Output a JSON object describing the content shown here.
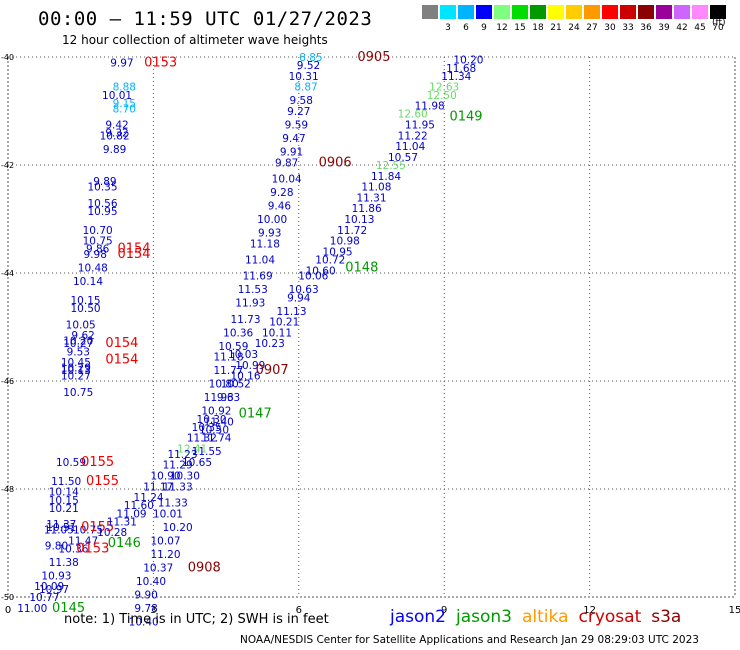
{
  "header": {
    "title": "00:00 – 11:59 UTC 01/27/2023",
    "subtitle": "12 hour collection of altimeter wave heights"
  },
  "color_scale": {
    "unit": "(ft)",
    "bins": [
      {
        "label": "",
        "color": "#808080"
      },
      {
        "label": "3",
        "color": "#00e5ff"
      },
      {
        "label": "6",
        "color": "#00b4ff"
      },
      {
        "label": "9",
        "color": "#0000ff"
      },
      {
        "label": "12",
        "color": "#7fff7f"
      },
      {
        "label": "15",
        "color": "#00dd00"
      },
      {
        "label": "18",
        "color": "#009900"
      },
      {
        "label": "21",
        "color": "#ffff00"
      },
      {
        "label": "24",
        "color": "#ffcc00"
      },
      {
        "label": "27",
        "color": "#ff9900"
      },
      {
        "label": "30",
        "color": "#ff0000"
      },
      {
        "label": "33",
        "color": "#cc0000"
      },
      {
        "label": "36",
        "color": "#8b0000"
      },
      {
        "label": "39",
        "color": "#990099"
      },
      {
        "label": "42",
        "color": "#cc66ff"
      },
      {
        "label": "45",
        "color": "#ff88ff"
      },
      {
        "label": "70",
        "color": "#000000"
      }
    ]
  },
  "chart_data": {
    "type": "scatter",
    "title": "00:00 – 11:59 UTC 01/27/2023",
    "subtitle": "12 hour collection of altimeter wave heights",
    "xlim": [
      0,
      15
    ],
    "ylim": [
      -50,
      -40
    ],
    "x_ticks": [
      "0",
      "3",
      "6",
      "9",
      "12",
      "15"
    ],
    "y_ticks": [
      "-40",
      "-42",
      "-44",
      "-46",
      "-48",
      "-50"
    ],
    "grid": true,
    "labels": [
      {
        "x": 2.35,
        "y": -40.1,
        "text": "9.97",
        "color": "#0000cc"
      },
      {
        "x": 3.15,
        "y": -40.1,
        "text": "0153",
        "color": "#ee0000"
      },
      {
        "x": 2.4,
        "y": -40.55,
        "text": "8.88",
        "color": "#00b4ff"
      },
      {
        "x": 2.25,
        "y": -40.7,
        "text": "10.01",
        "color": "#0000cc"
      },
      {
        "x": 2.4,
        "y": -40.85,
        "text": "9.15",
        "color": "#00b4ff"
      },
      {
        "x": 2.4,
        "y": -40.95,
        "text": "8.70",
        "color": "#00b4ff"
      },
      {
        "x": 2.25,
        "y": -41.25,
        "text": "9.42",
        "color": "#0000cc"
      },
      {
        "x": 2.25,
        "y": -41.4,
        "text": "9.32",
        "color": "#0000cc"
      },
      {
        "x": 2.2,
        "y": -41.45,
        "text": "10.82",
        "color": "#0000cc"
      },
      {
        "x": 2.2,
        "y": -41.7,
        "text": "9.89",
        "color": "#0000cc"
      },
      {
        "x": 2.0,
        "y": -42.3,
        "text": "9.89",
        "color": "#0000cc"
      },
      {
        "x": 1.95,
        "y": -42.4,
        "text": "10.35",
        "color": "#0000cc"
      },
      {
        "x": 1.95,
        "y": -42.7,
        "text": "10.56",
        "color": "#0000cc"
      },
      {
        "x": 1.95,
        "y": -42.85,
        "text": "10.95",
        "color": "#0000cc"
      },
      {
        "x": 1.85,
        "y": -43.2,
        "text": "10.70",
        "color": "#0000cc"
      },
      {
        "x": 1.85,
        "y": -43.4,
        "text": "10.75",
        "color": "#0000cc"
      },
      {
        "x": 1.85,
        "y": -43.55,
        "text": "9.86",
        "color": "#0000cc"
      },
      {
        "x": 1.8,
        "y": -43.65,
        "text": "9.98",
        "color": "#0000cc"
      },
      {
        "x": 2.6,
        "y": -43.55,
        "text": "0154",
        "color": "#ee0000"
      },
      {
        "x": 2.6,
        "y": -43.65,
        "text": "0154",
        "color": "#ee0000"
      },
      {
        "x": 1.75,
        "y": -43.9,
        "text": "10.48",
        "color": "#0000cc"
      },
      {
        "x": 1.65,
        "y": -44.15,
        "text": "10.14",
        "color": "#0000cc"
      },
      {
        "x": 1.6,
        "y": -44.5,
        "text": "10.15",
        "color": "#0000cc"
      },
      {
        "x": 1.6,
        "y": -44.65,
        "text": "10.50",
        "color": "#0000cc"
      },
      {
        "x": 1.5,
        "y": -44.95,
        "text": "10.05",
        "color": "#0000cc"
      },
      {
        "x": 1.55,
        "y": -45.15,
        "text": "9.62",
        "color": "#0000cc"
      },
      {
        "x": 1.45,
        "y": -45.25,
        "text": "10.20",
        "color": "#0000cc"
      },
      {
        "x": 1.45,
        "y": -45.3,
        "text": "10.27",
        "color": "#0000cc"
      },
      {
        "x": 2.35,
        "y": -45.3,
        "text": "0154",
        "color": "#ee0000"
      },
      {
        "x": 1.45,
        "y": -45.45,
        "text": "9.53",
        "color": "#0000cc"
      },
      {
        "x": 1.4,
        "y": -45.65,
        "text": "10.45",
        "color": "#0000cc"
      },
      {
        "x": 1.4,
        "y": -45.75,
        "text": "10.29",
        "color": "#0000cc"
      },
      {
        "x": 1.4,
        "y": -45.8,
        "text": "10.13",
        "color": "#0000cc"
      },
      {
        "x": 1.4,
        "y": -45.9,
        "text": "10.27",
        "color": "#0000cc"
      },
      {
        "x": 2.35,
        "y": -45.6,
        "text": "0154",
        "color": "#ee0000"
      },
      {
        "x": 1.45,
        "y": -46.2,
        "text": "10.75",
        "color": "#0000cc"
      },
      {
        "x": 1.3,
        "y": -47.5,
        "text": "10.59",
        "color": "#0000cc"
      },
      {
        "x": 1.85,
        "y": -47.5,
        "text": "0155",
        "color": "#ee0000"
      },
      {
        "x": 1.2,
        "y": -47.85,
        "text": "11.50",
        "color": "#0000cc"
      },
      {
        "x": 1.95,
        "y": -47.85,
        "text": "0155",
        "color": "#ee0000"
      },
      {
        "x": 1.15,
        "y": -48.05,
        "text": "10.14",
        "color": "#0000cc"
      },
      {
        "x": 1.15,
        "y": -48.2,
        "text": "10.15",
        "color": "#0000cc"
      },
      {
        "x": 1.15,
        "y": -48.35,
        "text": "10.21",
        "color": "#0000cc"
      },
      {
        "x": 1.1,
        "y": -48.65,
        "text": "11.37",
        "color": "#0000cc"
      },
      {
        "x": 1.1,
        "y": -48.7,
        "text": "10.51",
        "color": "#0000cc"
      },
      {
        "x": 1.05,
        "y": -48.75,
        "text": "11.05",
        "color": "#0000cc"
      },
      {
        "x": 1.65,
        "y": -48.75,
        "text": "10.75",
        "color": "#0000cc"
      },
      {
        "x": 1.85,
        "y": -48.7,
        "text": "0155",
        "color": "#ee0000"
      },
      {
        "x": 1.55,
        "y": -48.95,
        "text": "11.47",
        "color": "#0000cc"
      },
      {
        "x": 1.0,
        "y": -49.05,
        "text": "9.80",
        "color": "#0000cc"
      },
      {
        "x": 1.35,
        "y": -49.1,
        "text": "10.36",
        "color": "#0000cc"
      },
      {
        "x": 1.75,
        "y": -49.1,
        "text": "0153",
        "color": "#ee0000"
      },
      {
        "x": 1.15,
        "y": -49.35,
        "text": "11.38",
        "color": "#0000cc"
      },
      {
        "x": 1.0,
        "y": -49.6,
        "text": "10.93",
        "color": "#0000cc"
      },
      {
        "x": 0.85,
        "y": -49.8,
        "text": "10.09",
        "color": "#0000cc"
      },
      {
        "x": 0.95,
        "y": -49.85,
        "text": "10.97",
        "color": "#0000cc"
      },
      {
        "x": 0.75,
        "y": -50.0,
        "text": "10.77",
        "color": "#0000cc"
      },
      {
        "x": 0.5,
        "y": -50.2,
        "text": "11.00",
        "color": "#0000cc"
      },
      {
        "x": 1.25,
        "y": -50.2,
        "text": "0145",
        "color": "#009900"
      },
      {
        "x": 2.4,
        "y": -49.0,
        "text": "0146",
        "color": "#009900"
      },
      {
        "x": 6.25,
        "y": -40.0,
        "text": "8.85",
        "color": "#00b4ff"
      },
      {
        "x": 6.2,
        "y": -40.15,
        "text": "9.52",
        "color": "#0000cc"
      },
      {
        "x": 7.55,
        "y": -40.0,
        "text": "0905",
        "color": "#8b0000"
      },
      {
        "x": 6.1,
        "y": -40.35,
        "text": "10.31",
        "color": "#0000cc"
      },
      {
        "x": 6.15,
        "y": -40.55,
        "text": "8.87",
        "color": "#00b4ff"
      },
      {
        "x": 6.05,
        "y": -40.8,
        "text": "9.58",
        "color": "#0000cc"
      },
      {
        "x": 6.0,
        "y": -41.0,
        "text": "9.27",
        "color": "#0000cc"
      },
      {
        "x": 5.95,
        "y": -41.25,
        "text": "9.59",
        "color": "#0000cc"
      },
      {
        "x": 5.9,
        "y": -41.5,
        "text": "9.47",
        "color": "#0000cc"
      },
      {
        "x": 5.85,
        "y": -41.75,
        "text": "9.91",
        "color": "#0000cc"
      },
      {
        "x": 5.75,
        "y": -41.95,
        "text": "9.87",
        "color": "#0000cc"
      },
      {
        "x": 6.75,
        "y": -41.95,
        "text": "0906",
        "color": "#8b0000"
      },
      {
        "x": 5.75,
        "y": -42.25,
        "text": "10.04",
        "color": "#0000cc"
      },
      {
        "x": 5.65,
        "y": -42.5,
        "text": "9.28",
        "color": "#0000cc"
      },
      {
        "x": 5.6,
        "y": -42.75,
        "text": "9.46",
        "color": "#0000cc"
      },
      {
        "x": 5.45,
        "y": -43.0,
        "text": "10.00",
        "color": "#0000cc"
      },
      {
        "x": 5.4,
        "y": -43.25,
        "text": "9.93",
        "color": "#0000cc"
      },
      {
        "x": 5.3,
        "y": -43.45,
        "text": "11.18",
        "color": "#0000cc"
      },
      {
        "x": 5.2,
        "y": -43.75,
        "text": "11.04",
        "color": "#0000cc"
      },
      {
        "x": 5.15,
        "y": -44.05,
        "text": "11.69",
        "color": "#0000cc"
      },
      {
        "x": 5.05,
        "y": -44.3,
        "text": "11.53",
        "color": "#0000cc"
      },
      {
        "x": 5.0,
        "y": -44.55,
        "text": "11.93",
        "color": "#0000cc"
      },
      {
        "x": 4.9,
        "y": -44.85,
        "text": "11.73",
        "color": "#0000cc"
      },
      {
        "x": 4.75,
        "y": -45.1,
        "text": "10.36",
        "color": "#0000cc"
      },
      {
        "x": 4.65,
        "y": -45.35,
        "text": "10.59",
        "color": "#0000cc"
      },
      {
        "x": 4.55,
        "y": -45.55,
        "text": "11.18",
        "color": "#0000cc"
      },
      {
        "x": 4.85,
        "y": -45.5,
        "text": "10.03",
        "color": "#0000cc"
      },
      {
        "x": 4.55,
        "y": -45.8,
        "text": "11.77",
        "color": "#0000cc"
      },
      {
        "x": 5.0,
        "y": -45.7,
        "text": "10.99",
        "color": "#0000cc"
      },
      {
        "x": 4.9,
        "y": -45.9,
        "text": "10.16",
        "color": "#0000cc"
      },
      {
        "x": 5.45,
        "y": -45.8,
        "text": "0907",
        "color": "#8b0000"
      },
      {
        "x": 4.45,
        "y": -46.05,
        "text": "10.80",
        "color": "#0000cc"
      },
      {
        "x": 4.7,
        "y": -46.05,
        "text": "10.52",
        "color": "#0000cc"
      },
      {
        "x": 4.35,
        "y": -46.3,
        "text": "11.93",
        "color": "#0000cc"
      },
      {
        "x": 4.55,
        "y": -46.3,
        "text": "9.63",
        "color": "#0000cc"
      },
      {
        "x": 4.3,
        "y": -46.55,
        "text": "10.92",
        "color": "#0000cc"
      },
      {
        "x": 4.2,
        "y": -46.7,
        "text": "10.30",
        "color": "#0000cc"
      },
      {
        "x": 4.1,
        "y": -46.85,
        "text": "10.35",
        "color": "#0000cc"
      },
      {
        "x": 4.25,
        "y": -46.9,
        "text": "10.50",
        "color": "#0000cc"
      },
      {
        "x": 4.35,
        "y": -46.75,
        "text": "11.40",
        "color": "#0000cc"
      },
      {
        "x": 5.1,
        "y": -46.6,
        "text": "0147",
        "color": "#009900"
      },
      {
        "x": 4.0,
        "y": -47.05,
        "text": "11.32",
        "color": "#0000cc"
      },
      {
        "x": 4.3,
        "y": -47.05,
        "text": "11.74",
        "color": "#0000cc"
      },
      {
        "x": 3.8,
        "y": -47.25,
        "text": "12.41",
        "color": "#66dd66"
      },
      {
        "x": 4.1,
        "y": -47.3,
        "text": "11.55",
        "color": "#0000cc"
      },
      {
        "x": 3.6,
        "y": -47.35,
        "text": "11.23",
        "color": "#0000cc"
      },
      {
        "x": 3.5,
        "y": -47.55,
        "text": "11.29",
        "color": "#0000cc"
      },
      {
        "x": 3.9,
        "y": -47.5,
        "text": "10.65",
        "color": "#0000cc"
      },
      {
        "x": 3.25,
        "y": -47.75,
        "text": "10.90",
        "color": "#0000cc"
      },
      {
        "x": 3.65,
        "y": -47.75,
        "text": "10.30",
        "color": "#0000cc"
      },
      {
        "x": 3.1,
        "y": -47.95,
        "text": "11.17",
        "color": "#0000cc"
      },
      {
        "x": 3.5,
        "y": -47.95,
        "text": "11.33",
        "color": "#0000cc"
      },
      {
        "x": 2.9,
        "y": -48.15,
        "text": "11.24",
        "color": "#0000cc"
      },
      {
        "x": 3.4,
        "y": -48.25,
        "text": "11.33",
        "color": "#0000cc"
      },
      {
        "x": 2.7,
        "y": -48.3,
        "text": "11.60",
        "color": "#0000cc"
      },
      {
        "x": 2.55,
        "y": -48.45,
        "text": "11.09",
        "color": "#0000cc"
      },
      {
        "x": 3.3,
        "y": -48.45,
        "text": "10.01",
        "color": "#0000cc"
      },
      {
        "x": 2.35,
        "y": -48.6,
        "text": "11.31",
        "color": "#0000cc"
      },
      {
        "x": 3.5,
        "y": -48.7,
        "text": "10.20",
        "color": "#0000cc"
      },
      {
        "x": 2.15,
        "y": -48.8,
        "text": "10.28",
        "color": "#0000cc"
      },
      {
        "x": 3.25,
        "y": -48.95,
        "text": "10.07",
        "color": "#0000cc"
      },
      {
        "x": 3.25,
        "y": -49.2,
        "text": "11.20",
        "color": "#0000cc"
      },
      {
        "x": 3.1,
        "y": -49.45,
        "text": "10.37",
        "color": "#0000cc"
      },
      {
        "x": 2.95,
        "y": -49.7,
        "text": "10.40",
        "color": "#0000cc"
      },
      {
        "x": 2.85,
        "y": -49.95,
        "text": "9.90",
        "color": "#0000cc"
      },
      {
        "x": 2.85,
        "y": -50.2,
        "text": "9.78",
        "color": "#0000cc"
      },
      {
        "x": 2.8,
        "y": -50.45,
        "text": "10.40",
        "color": "#0000cc"
      },
      {
        "x": 4.05,
        "y": -49.45,
        "text": "0908",
        "color": "#8b0000"
      },
      {
        "x": 9.5,
        "y": -40.05,
        "text": "10.20",
        "color": "#0000cc"
      },
      {
        "x": 9.35,
        "y": -40.2,
        "text": "11.68",
        "color": "#0000cc"
      },
      {
        "x": 9.25,
        "y": -40.35,
        "text": "11.34",
        "color": "#0000cc"
      },
      {
        "x": 9.0,
        "y": -40.55,
        "text": "12.63",
        "color": "#66dd66"
      },
      {
        "x": 8.95,
        "y": -40.7,
        "text": "12.50",
        "color": "#66dd66"
      },
      {
        "x": 8.7,
        "y": -40.9,
        "text": "11.98",
        "color": "#0000cc"
      },
      {
        "x": 8.35,
        "y": -41.05,
        "text": "12.60",
        "color": "#66dd66"
      },
      {
        "x": 8.5,
        "y": -41.25,
        "text": "11.95",
        "color": "#0000cc"
      },
      {
        "x": 8.35,
        "y": -41.45,
        "text": "11.22",
        "color": "#0000cc"
      },
      {
        "x": 8.3,
        "y": -41.65,
        "text": "11.04",
        "color": "#0000cc"
      },
      {
        "x": 8.15,
        "y": -41.85,
        "text": "10.57",
        "color": "#0000cc"
      },
      {
        "x": 7.9,
        "y": -42.0,
        "text": "12.55",
        "color": "#66dd66"
      },
      {
        "x": 7.8,
        "y": -42.2,
        "text": "11.84",
        "color": "#0000cc"
      },
      {
        "x": 7.6,
        "y": -42.4,
        "text": "11.08",
        "color": "#0000cc"
      },
      {
        "x": 7.5,
        "y": -42.6,
        "text": "11.31",
        "color": "#0000cc"
      },
      {
        "x": 7.4,
        "y": -42.8,
        "text": "11.86",
        "color": "#0000cc"
      },
      {
        "x": 7.25,
        "y": -43.0,
        "text": "10.13",
        "color": "#0000cc"
      },
      {
        "x": 7.1,
        "y": -43.2,
        "text": "11.72",
        "color": "#0000cc"
      },
      {
        "x": 6.95,
        "y": -43.4,
        "text": "10.98",
        "color": "#0000cc"
      },
      {
        "x": 6.8,
        "y": -43.6,
        "text": "10.95",
        "color": "#0000cc"
      },
      {
        "x": 6.65,
        "y": -43.75,
        "text": "10.72",
        "color": "#0000cc"
      },
      {
        "x": 6.45,
        "y": -43.95,
        "text": "10.60",
        "color": "#0000cc"
      },
      {
        "x": 7.3,
        "y": -43.9,
        "text": "0148",
        "color": "#009900"
      },
      {
        "x": 6.3,
        "y": -44.05,
        "text": "10.06",
        "color": "#0000cc"
      },
      {
        "x": 6.1,
        "y": -44.3,
        "text": "10.63",
        "color": "#0000cc"
      },
      {
        "x": 6.0,
        "y": -44.45,
        "text": "9.94",
        "color": "#0000cc"
      },
      {
        "x": 5.85,
        "y": -44.7,
        "text": "11.13",
        "color": "#0000cc"
      },
      {
        "x": 5.7,
        "y": -44.9,
        "text": "10.21",
        "color": "#0000cc"
      },
      {
        "x": 5.55,
        "y": -45.1,
        "text": "10.11",
        "color": "#0000cc"
      },
      {
        "x": 5.4,
        "y": -45.3,
        "text": "10.23",
        "color": "#0000cc"
      },
      {
        "x": 9.45,
        "y": -41.1,
        "text": "0149",
        "color": "#009900"
      }
    ]
  },
  "footer": {
    "note": "note: 1) Time is in UTC; 2) SWH is in feet",
    "credit": "NOAA/NESDIS Center for Satellite Applications and Research   Jan 29 08:29:03 UTC 2023",
    "satellites": [
      {
        "name": "jason2",
        "color": "#0000ff"
      },
      {
        "name": "jason3",
        "color": "#009900"
      },
      {
        "name": "altika",
        "color": "#ff9900"
      },
      {
        "name": "cryosat",
        "color": "#cc0000"
      },
      {
        "name": "s3a",
        "color": "#8b0000"
      }
    ]
  }
}
